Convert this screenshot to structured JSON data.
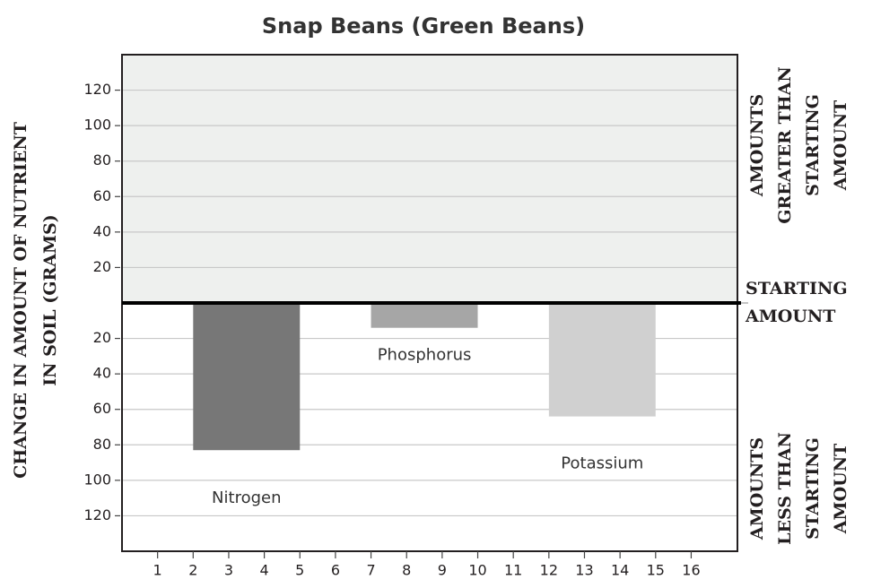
{
  "chart_data": {
    "type": "bar",
    "title": "Snap Beans (Green Beans)",
    "y_label": [
      "CHANGE IN AMOUNT OF NUTRIENT",
      "IN SOIL (GRAMS)"
    ],
    "xlim": [
      0,
      17.3
    ],
    "xticks": [
      1,
      2,
      3,
      4,
      5,
      6,
      7,
      8,
      9,
      10,
      11,
      12,
      13,
      14,
      15,
      16
    ],
    "ylim": [
      -140,
      140
    ],
    "yticks": [
      120,
      100,
      80,
      60,
      40,
      20,
      {
        "value": -20,
        "label": "20"
      },
      {
        "value": -40,
        "label": "40"
      },
      {
        "value": -60,
        "label": "60"
      },
      {
        "value": -80,
        "label": "80"
      },
      {
        "value": -100,
        "label": "100"
      },
      {
        "value": -120,
        "label": "120"
      }
    ],
    "grid": true,
    "bars": [
      {
        "label": "Nitrogen",
        "color": "#777777",
        "x": [
          2,
          5
        ],
        "value": -83
      },
      {
        "label": "Phosphorus",
        "color": "#a6a6a6",
        "x": [
          7,
          10
        ],
        "value": -14
      },
      {
        "label": "Potassium",
        "color": "#d0d0d0",
        "x": [
          12,
          15
        ],
        "value": -64
      }
    ],
    "annotations": {
      "above": [
        "AMOUNTS",
        "GREATER THAN",
        "STARTING",
        "AMOUNT"
      ],
      "zero": [
        "STARTING",
        "AMOUNT"
      ],
      "below": [
        "AMOUNTS",
        "LESS THAN",
        "STARTING",
        "AMOUNT"
      ]
    }
  }
}
